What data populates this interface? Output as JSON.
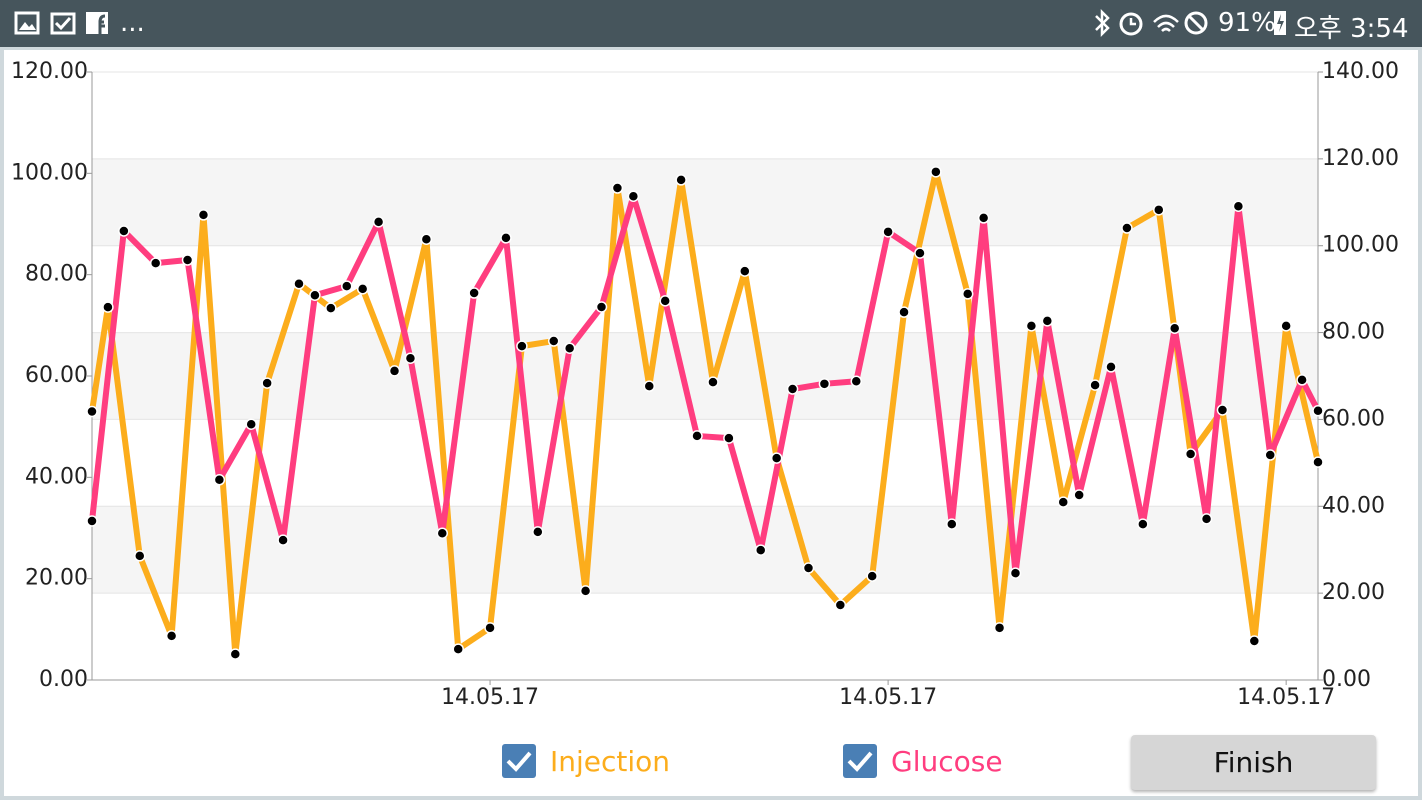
{
  "status_bar": {
    "notifications": "...",
    "battery": "91%",
    "time": "오후 3:54"
  },
  "chart_data": {
    "type": "line",
    "xlim": [
      0,
      77
    ],
    "xticks": [
      {
        "value": 25,
        "label": "14.05.17"
      },
      {
        "value": 50,
        "label": "14.05.17"
      },
      {
        "value": 75,
        "label": "14.05.17"
      }
    ],
    "ylim": [
      0,
      120
    ],
    "yticks": [
      {
        "value": 0,
        "label": "0.00"
      },
      {
        "value": 20,
        "label": "20.00"
      },
      {
        "value": 40,
        "label": "40.00"
      },
      {
        "value": 60,
        "label": "60.00"
      },
      {
        "value": 80,
        "label": "80.00"
      },
      {
        "value": 100,
        "label": "100.00"
      },
      {
        "value": 120,
        "label": "120.00"
      }
    ],
    "y2lim": [
      0,
      140
    ],
    "y2ticks": [
      {
        "value": 0,
        "label": "0.00"
      },
      {
        "value": 20,
        "label": "20.00"
      },
      {
        "value": 40,
        "label": "40.00"
      },
      {
        "value": 60,
        "label": "60.00"
      },
      {
        "value": 80,
        "label": "80.00"
      },
      {
        "value": 100,
        "label": "100.00"
      },
      {
        "value": 120,
        "label": "120.00"
      },
      {
        "value": 140,
        "label": "140.00"
      }
    ],
    "grid": true,
    "series": [
      {
        "name": "Injection",
        "color": "#fcad1c",
        "x": [
          0,
          1,
          3,
          5,
          7,
          9,
          11,
          13,
          15,
          17,
          19,
          21,
          23,
          25,
          27,
          29,
          31,
          33,
          35,
          37,
          39,
          41,
          43,
          45,
          47,
          49,
          51,
          53,
          55,
          57,
          59,
          61,
          63,
          65,
          67,
          69,
          71,
          73,
          75,
          77
        ],
        "values": [
          53,
          73.6,
          24.5,
          8.7,
          91.8,
          5.1,
          58.6,
          78.2,
          73.4,
          77.2,
          61,
          87,
          6.1,
          10.3,
          65.9,
          66.9,
          17.6,
          97.1,
          58,
          98.7,
          58.8,
          80.7,
          43.8,
          22.1,
          14.8,
          20.5,
          72.6,
          100.3,
          76.2,
          10.3,
          69.9,
          35.1,
          58.2,
          89.2,
          92.8,
          44.6,
          53.3,
          7.7,
          69.9,
          43
        ]
      },
      {
        "name": "Glucose",
        "color": "#ff3d7f",
        "axis": "y2",
        "x": [
          0,
          2,
          4,
          6,
          8,
          10,
          12,
          14,
          16,
          18,
          20,
          22,
          24,
          26,
          28,
          30,
          32,
          34,
          36,
          38,
          40,
          42,
          44,
          46,
          48,
          50,
          52,
          54,
          56,
          58,
          60,
          62,
          64,
          66,
          68,
          70,
          72,
          74,
          76,
          77
        ],
        "values": [
          36.6,
          103.4,
          96,
          96.7,
          46.1,
          58.9,
          32.2,
          88.6,
          90.7,
          105.5,
          74.1,
          33.8,
          89.1,
          101.8,
          34.1,
          76.4,
          85.9,
          111.4,
          87.3,
          56.2,
          55.7,
          29.9,
          67,
          68.2,
          68.8,
          103.2,
          98.3,
          35.9,
          106.4,
          24.6,
          82.7,
          42.6,
          72.1,
          35.9,
          81,
          37.1,
          109.1,
          51.8,
          69.1,
          62
        ]
      }
    ]
  },
  "buttons": {
    "finish": "Finish"
  }
}
